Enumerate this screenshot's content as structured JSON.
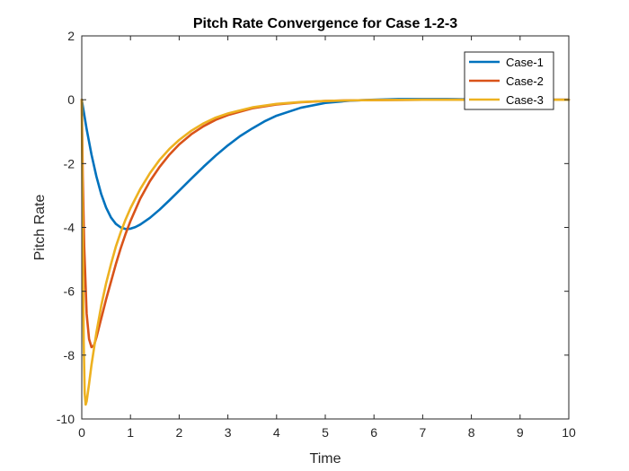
{
  "chart_data": {
    "type": "line",
    "title": "Pitch Rate Convergence for Case 1-2-3",
    "xlabel": "Time",
    "ylabel": "Pitch Rate",
    "xlim": [
      0,
      10
    ],
    "ylim": [
      -10,
      2
    ],
    "xticks": [
      "0",
      "1",
      "2",
      "3",
      "4",
      "5",
      "6",
      "7",
      "8",
      "9",
      "10"
    ],
    "yticks": [
      "2",
      "0",
      "-2",
      "-4",
      "-6",
      "-8",
      "-10"
    ],
    "grid": false,
    "legend_position": "top-right",
    "series": [
      {
        "name": "Case-1",
        "color": "#0072BD",
        "x": [
          0,
          0.1,
          0.2,
          0.3,
          0.4,
          0.5,
          0.6,
          0.7,
          0.8,
          0.9,
          1.0,
          1.1,
          1.2,
          1.4,
          1.6,
          1.8,
          2.0,
          2.25,
          2.5,
          2.75,
          3.0,
          3.25,
          3.5,
          3.75,
          4.0,
          4.5,
          5.0,
          5.5,
          6.0,
          6.5,
          7.0,
          7.5,
          8.0,
          9.0,
          10.0
        ],
        "y": [
          0,
          -0.92,
          -1.72,
          -2.4,
          -2.96,
          -3.38,
          -3.69,
          -3.89,
          -4.0,
          -4.05,
          -4.04,
          -3.99,
          -3.91,
          -3.7,
          -3.44,
          -3.15,
          -2.85,
          -2.47,
          -2.1,
          -1.75,
          -1.43,
          -1.14,
          -0.9,
          -0.68,
          -0.5,
          -0.25,
          -0.1,
          -0.03,
          0.0,
          0.02,
          0.02,
          0.02,
          0.01,
          0.0,
          0.0
        ]
      },
      {
        "name": "Case-2",
        "color": "#D95319",
        "x": [
          0,
          0.02,
          0.05,
          0.1,
          0.15,
          0.2,
          0.25,
          0.3,
          0.4,
          0.5,
          0.6,
          0.7,
          0.8,
          0.9,
          1.0,
          1.2,
          1.4,
          1.6,
          1.8,
          2.0,
          2.25,
          2.5,
          2.75,
          3.0,
          3.5,
          4.0,
          4.5,
          5.0,
          5.5,
          6.0,
          7.0,
          8.0,
          9.0,
          10.0
        ],
        "y": [
          0,
          -2.4,
          -4.6,
          -6.7,
          -7.5,
          -7.75,
          -7.7,
          -7.45,
          -6.85,
          -6.25,
          -5.7,
          -5.15,
          -4.65,
          -4.2,
          -3.8,
          -3.1,
          -2.55,
          -2.1,
          -1.72,
          -1.4,
          -1.08,
          -0.83,
          -0.63,
          -0.48,
          -0.27,
          -0.15,
          -0.08,
          -0.04,
          -0.02,
          -0.01,
          0.0,
          0.0,
          0.0,
          0.0
        ]
      },
      {
        "name": "Case-3",
        "color": "#EDB120",
        "x": [
          0,
          0.02,
          0.04,
          0.06,
          0.08,
          0.1,
          0.15,
          0.2,
          0.3,
          0.4,
          0.5,
          0.6,
          0.7,
          0.8,
          0.9,
          1.0,
          1.2,
          1.4,
          1.6,
          1.8,
          2.0,
          2.25,
          2.5,
          2.75,
          3.0,
          3.5,
          4.0,
          4.5,
          5.0,
          5.5,
          6.0,
          7.0,
          8.0,
          9.0,
          10.0
        ],
        "y": [
          0,
          -4.5,
          -7.6,
          -9.2,
          -9.55,
          -9.45,
          -8.9,
          -8.3,
          -7.3,
          -6.45,
          -5.75,
          -5.15,
          -4.6,
          -4.15,
          -3.75,
          -3.4,
          -2.8,
          -2.3,
          -1.88,
          -1.54,
          -1.26,
          -0.97,
          -0.74,
          -0.56,
          -0.43,
          -0.24,
          -0.13,
          -0.07,
          -0.04,
          -0.02,
          -0.01,
          0.0,
          0.0,
          0.0,
          0.0
        ]
      }
    ]
  }
}
